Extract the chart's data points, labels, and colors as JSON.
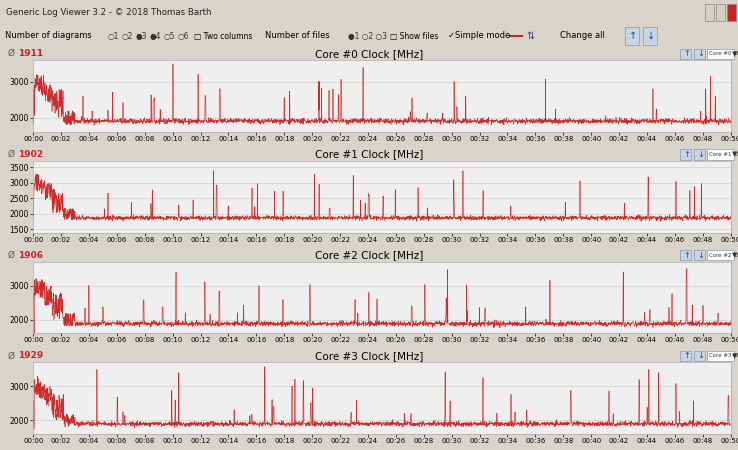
{
  "title": "Generic Log Viewer 3.2 - © 2018 Thomas Barth",
  "cores": [
    {
      "label": "Core #0 Clock [MHz]",
      "avg": 1911,
      "ylim": [
        1600,
        3600
      ],
      "yticks": [
        2000,
        3000
      ],
      "color": "#cc2222"
    },
    {
      "label": "Core #1 Clock [MHz]",
      "avg": 1902,
      "ylim": [
        1400,
        3700
      ],
      "yticks": [
        1500,
        2000,
        2500,
        3000,
        3500
      ],
      "color": "#cc2222"
    },
    {
      "label": "Core #2 Clock [MHz]",
      "avg": 1906,
      "ylim": [
        1600,
        3700
      ],
      "yticks": [
        2000,
        3000
      ],
      "color": "#cc2222"
    },
    {
      "label": "Core #3 Clock [MHz]",
      "avg": 1929,
      "ylim": [
        1600,
        3700
      ],
      "yticks": [
        2000,
        3000
      ],
      "color": "#cc2222"
    }
  ],
  "time_labels": [
    "00:00",
    "00:02",
    "00:04",
    "00:06",
    "00:08",
    "00:10",
    "00:12",
    "00:14",
    "00:16",
    "00:18",
    "00:20",
    "00:22",
    "00:24",
    "00:26",
    "00:28",
    "00:30",
    "00:32",
    "00:34",
    "00:36",
    "00:38",
    "00:40",
    "00:42",
    "00:44",
    "00:46",
    "00:48",
    "00:50"
  ],
  "line_color": "#cc2222",
  "grid_color": "#c8c8c8",
  "plot_bg": "#efefef",
  "outer_bg": "#d8d4cc",
  "header_bg": "#c8d4e4",
  "panel_border": "#a0a0a0",
  "titlebar_bg": "#c8d4e4",
  "toolbar_bg": "#dde4ee"
}
